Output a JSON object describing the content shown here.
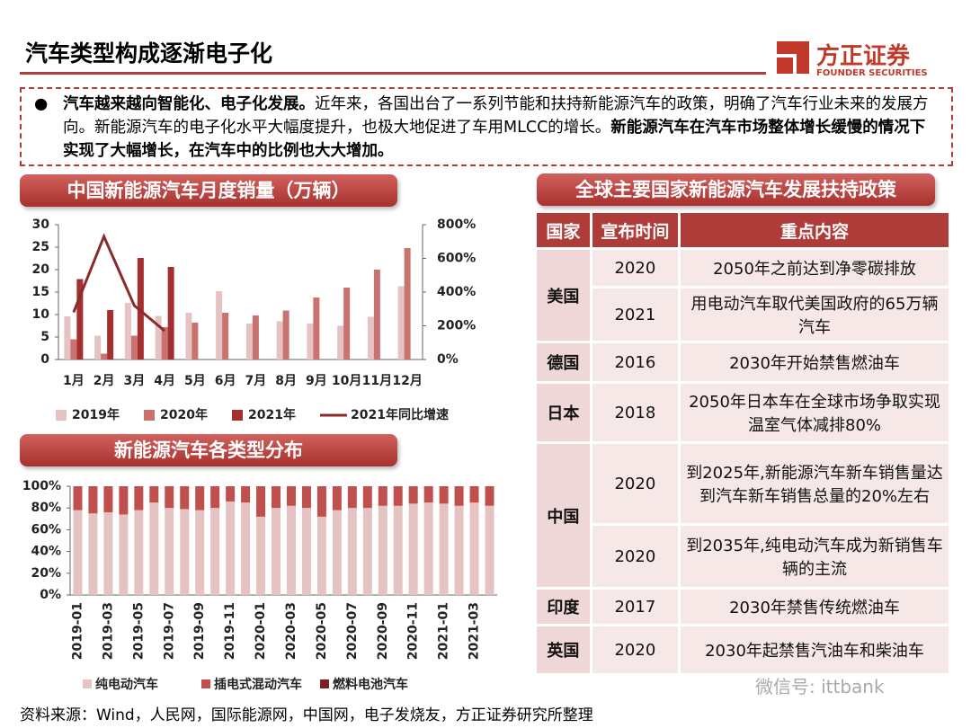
{
  "title": "汽车类型构成逐渐电子化",
  "logo": {
    "name": "方正证券",
    "subname": "FOUNDER SECURITIES"
  },
  "bullet": [
    {
      "text": "汽车越来越向智能化、电子化发展。",
      "bold": true
    },
    {
      "text": "近年来，各国出台了一系列节能和扶持新能源汽车的政策，明确了汽车行业未来的发展方向。新能源汽车的电子化水平大幅度提升，也极大地促进了车用MLCC的增长。",
      "bold": false
    },
    {
      "text": "新能源汽车在汽车市场整体增长缓慢的情况下实现了大幅增长，在汽车中的比例也大大增加。",
      "bold": true
    }
  ],
  "chart_data": [
    {
      "type": "bar",
      "title": "中国新能源汽车月度销量（万辆）",
      "categories": [
        "1月",
        "2月",
        "3月",
        "4月",
        "5月",
        "6月",
        "7月",
        "8月",
        "9月",
        "10月",
        "11月",
        "12月"
      ],
      "series": [
        {
          "name": "2019年",
          "color": "#e6c3c3",
          "values": [
            9.6,
            5.3,
            12.6,
            9.7,
            10.4,
            15.2,
            8.0,
            8.5,
            8.0,
            7.5,
            9.5,
            16.3
          ]
        },
        {
          "name": "2020年",
          "color": "#c8736f",
          "values": [
            4.5,
            1.3,
            5.3,
            7.2,
            8.2,
            10.4,
            9.8,
            10.9,
            13.8,
            16.0,
            20.0,
            24.8
          ]
        },
        {
          "name": "2021年",
          "color": "#a3302f",
          "values": [
            17.9,
            11.0,
            22.6,
            20.6,
            null,
            null,
            null,
            null,
            null,
            null,
            null,
            null
          ]
        },
        {
          "name": "2021年同比增速",
          "color": "#8b2a2a",
          "type": "line",
          "axis": "y2",
          "values": [
            280,
            730,
            320,
            170,
            null,
            null,
            null,
            null,
            null,
            null,
            null,
            null
          ]
        }
      ],
      "ylim": [
        0,
        30
      ],
      "yticks": [
        0,
        5,
        10,
        15,
        20,
        25,
        30
      ],
      "y2lim": [
        0,
        800
      ],
      "y2ticks": [
        {
          "value": 0,
          "label": "0%"
        },
        {
          "value": 200,
          "label": "200%"
        },
        {
          "value": 400,
          "label": "400%"
        },
        {
          "value": 600,
          "label": "600%"
        },
        {
          "value": 800,
          "label": "800%"
        }
      ]
    },
    {
      "type": "stacked_bar",
      "title": "新能源汽车各类型分布",
      "categories": [
        "2019-01",
        null,
        "2019-03",
        null,
        "2019-05",
        null,
        "2019-07",
        null,
        "2019-09",
        null,
        "2019-11",
        null,
        "2020-01",
        null,
        "2020-03",
        null,
        "2020-05",
        null,
        "2020-07",
        null,
        "2020-09",
        null,
        "2020-11",
        null,
        "2021-01",
        null,
        "2021-03",
        null
      ],
      "series": [
        {
          "name": "纯电动汽车",
          "color": "#e6c3c3",
          "values": [
            78,
            75,
            76,
            74,
            78,
            85,
            80,
            79,
            78,
            80,
            86,
            85,
            72,
            80,
            82,
            80,
            72,
            78,
            80,
            80,
            82,
            82,
            84,
            85,
            84,
            82,
            85,
            82
          ]
        },
        {
          "name": "插电式混动汽车",
          "color": "#c0504d",
          "values": [
            22,
            25,
            24,
            26,
            22,
            15,
            20,
            21,
            22,
            20,
            14,
            15,
            28,
            20,
            18,
            20,
            28,
            22,
            20,
            20,
            18,
            18,
            16,
            15,
            16,
            18,
            15,
            18
          ]
        },
        {
          "name": "燃料电池汽车",
          "color": "#7b2020",
          "values": [
            0,
            0,
            0,
            0,
            0,
            0,
            0,
            0,
            0,
            0,
            0,
            0,
            0,
            0,
            0,
            0,
            0,
            0,
            0,
            0,
            0,
            0,
            0,
            0,
            0,
            0,
            0,
            0
          ]
        }
      ],
      "ylim": [
        0,
        100
      ],
      "yticks": [
        {
          "value": 0,
          "label": "0%"
        },
        {
          "value": 20,
          "label": "20%"
        },
        {
          "value": 40,
          "label": "40%"
        },
        {
          "value": 60,
          "label": "60%"
        },
        {
          "value": 80,
          "label": "80%"
        },
        {
          "value": 100,
          "label": "100%"
        }
      ]
    }
  ],
  "table": {
    "title": "全球主要国家新能源汽车发展扶持政策",
    "header": [
      "国家",
      "宣布时间",
      "重点内容"
    ],
    "rows": [
      {
        "country": "美国",
        "entries": [
          {
            "year": "2020",
            "content": "2050年之前达到净零碳排放"
          },
          {
            "year": "2021",
            "content": "用电动汽车取代美国政府的65万辆汽车"
          }
        ]
      },
      {
        "country": "德国",
        "entries": [
          {
            "year": "2016",
            "content": "2030年开始禁售燃油车"
          }
        ]
      },
      {
        "country": "日本",
        "entries": [
          {
            "year": "2018",
            "content": "2050年日本车在全球市场争取实现温室气体减排80%"
          }
        ]
      },
      {
        "country": "中国",
        "entries": [
          {
            "year": "2020",
            "content": "到2025年,新能源汽车新车销售量达到汽车新车销售总量的20%左右"
          },
          {
            "year": "2020",
            "content": "到2035年,纯电动汽车成为新销售车辆的主流"
          }
        ]
      },
      {
        "country": "印度",
        "entries": [
          {
            "year": "2017",
            "content": "2030年禁售传统燃油车"
          }
        ]
      },
      {
        "country": "英国",
        "entries": [
          {
            "year": "2020",
            "content": "2030年起禁售汽油车和柴油车"
          }
        ]
      }
    ]
  },
  "watermark": "微信号: ittbank",
  "source": "资料来源：Wind，人民网，国际能源网，中国网，电子发烧友，方正证券研究所整理"
}
